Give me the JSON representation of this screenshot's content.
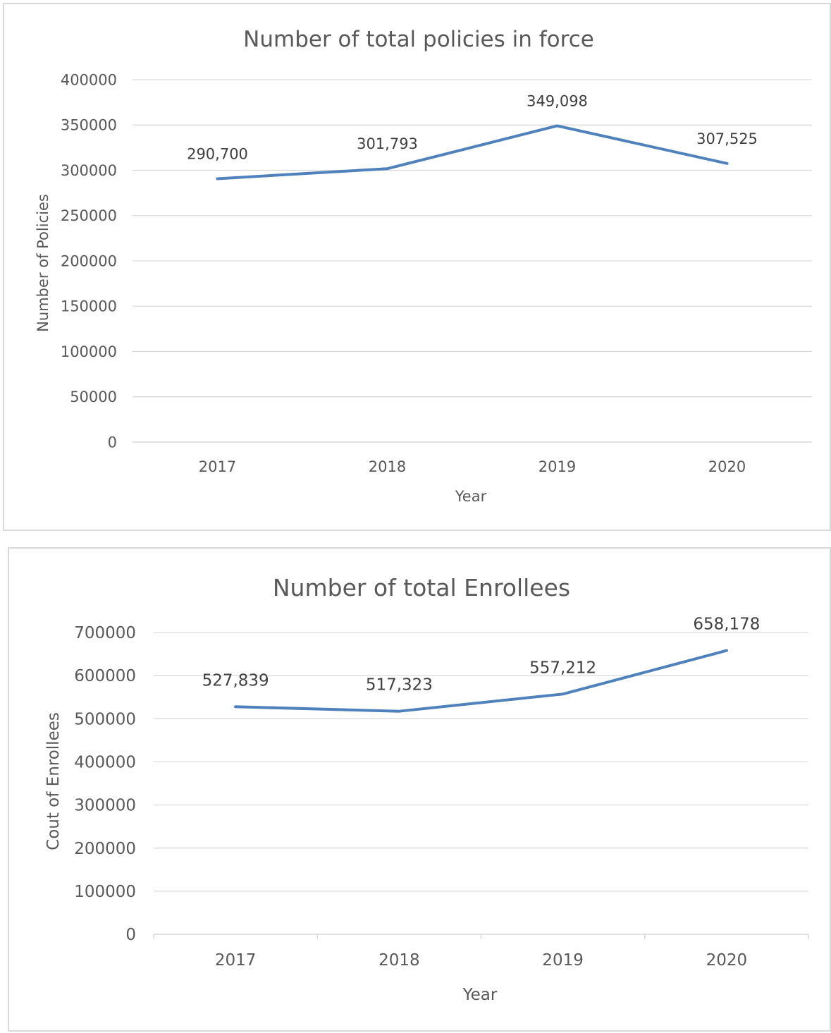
{
  "colors": {
    "series": "#4f81bd",
    "grid": "#d9d9d9",
    "text": "#595959"
  },
  "chart_data": [
    {
      "type": "line",
      "title": "Number of total policies in force",
      "xlabel": "Year",
      "ylabel": "Number of Policies",
      "categories": [
        "2017",
        "2018",
        "2019",
        "2020"
      ],
      "values": [
        290700,
        301793,
        349098,
        307525
      ],
      "data_labels": [
        "290,700",
        "301,793",
        "349,098",
        "307,525"
      ],
      "yticks": [
        "0",
        "50000",
        "100000",
        "150000",
        "200000",
        "250000",
        "300000",
        "350000",
        "400000"
      ],
      "ylim": [
        0,
        400000
      ],
      "grid": true,
      "legend": "none"
    },
    {
      "type": "line",
      "title": "Number of total Enrollees",
      "xlabel": "Year",
      "ylabel": "Cout of Enrollees",
      "categories": [
        "2017",
        "2018",
        "2019",
        "2020"
      ],
      "values": [
        527839,
        517323,
        557212,
        658178
      ],
      "data_labels": [
        "527,839",
        "517,323",
        "557,212",
        "658,178"
      ],
      "yticks": [
        "0",
        "100000",
        "200000",
        "300000",
        "400000",
        "500000",
        "600000",
        "700000"
      ],
      "ylim": [
        0,
        700000
      ],
      "grid": true,
      "legend": "none"
    }
  ]
}
